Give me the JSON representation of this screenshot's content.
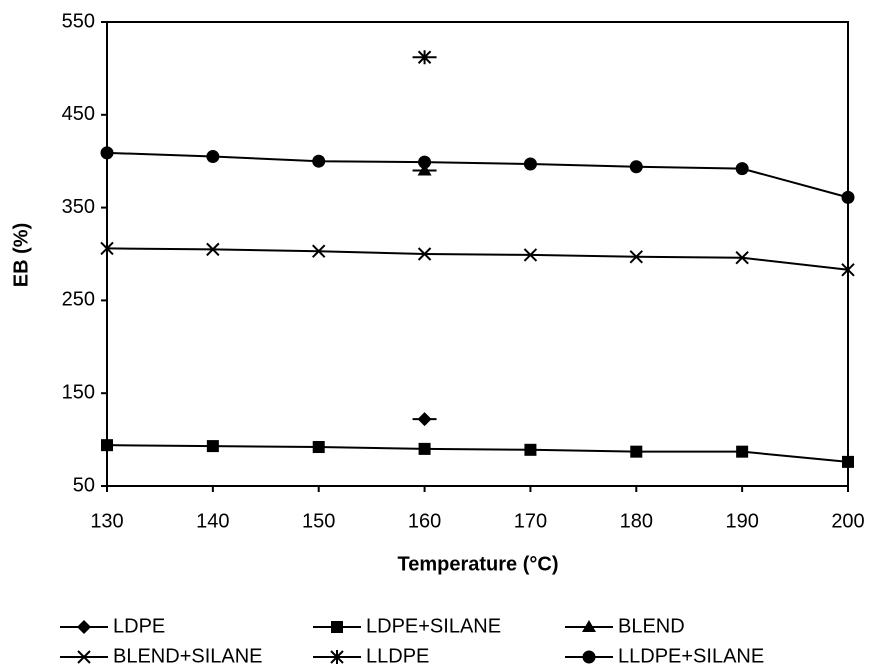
{
  "chart_data": {
    "type": "line",
    "x_label": "Temperature (°C)",
    "y_label": "EB (%)",
    "x": [
      130,
      140,
      150,
      160,
      170,
      180,
      190,
      200
    ],
    "xlim": [
      130,
      200
    ],
    "xticks": [
      130,
      140,
      150,
      160,
      170,
      180,
      190,
      200
    ],
    "ylim": [
      50,
      550
    ],
    "yticks": [
      50,
      150,
      250,
      350,
      450,
      550
    ],
    "series": [
      {
        "name": "LDPE",
        "color": "#000000",
        "marker": "diamond",
        "values": [
          null,
          null,
          null,
          122,
          null,
          null,
          null,
          null
        ]
      },
      {
        "name": "LDPE+SILANE",
        "color": "#000000",
        "marker": "square",
        "values": [
          94,
          93,
          92,
          90,
          89,
          87,
          87,
          76
        ]
      },
      {
        "name": "BLEND",
        "color": "#000000",
        "marker": "triangle",
        "values": [
          null,
          null,
          null,
          390,
          null,
          null,
          null,
          null
        ]
      },
      {
        "name": "BLEND+SILANE",
        "color": "#000000",
        "marker": "x",
        "values": [
          306,
          305,
          303,
          300,
          299,
          297,
          296,
          283
        ]
      },
      {
        "name": "LLDPE",
        "color": "#000000",
        "marker": "asterisk",
        "values": [
          null,
          null,
          null,
          512,
          null,
          null,
          null,
          null
        ]
      },
      {
        "name": "LLDPE+SILANE",
        "color": "#000000",
        "marker": "circle",
        "values": [
          409,
          405,
          400,
          399,
          397,
          394,
          392,
          361
        ]
      }
    ]
  }
}
